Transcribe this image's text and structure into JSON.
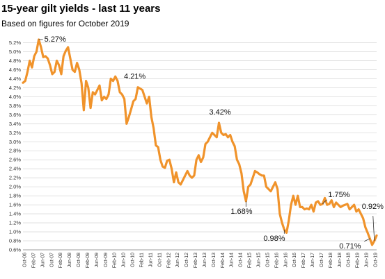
{
  "chart_data": {
    "type": "line",
    "title": "15-year gilt yields - last 11 years",
    "subtitle": "Based on figures for October 2019",
    "xlabel": "",
    "ylabel": "",
    "ylim": [
      0.6,
      5.3
    ],
    "yticks": [
      0.6,
      0.8,
      1.0,
      1.2,
      1.4,
      1.6,
      1.8,
      2.0,
      2.2,
      2.4,
      2.6,
      2.8,
      3.0,
      3.2,
      3.4,
      3.6,
      3.8,
      4.0,
      4.2,
      4.4,
      4.6,
      4.8,
      5.0,
      5.2
    ],
    "ytick_labels": [
      "0.6%",
      "0.8%",
      "1.0%",
      "1.2%",
      "1.4%",
      "1.6%",
      "1.8%",
      "2.0%",
      "2.2%",
      "2.4%",
      "2.6%",
      "2.8%",
      "3.0%",
      "3.2%",
      "3.4%",
      "3.6%",
      "3.8%",
      "4.0%",
      "4.2%",
      "4.4%",
      "4.6%",
      "4.8%",
      "5.0%",
      "5.2%"
    ],
    "xtick_labels": [
      "Oct-06",
      "Feb-07",
      "Jun-07",
      "Oct-07",
      "Feb-08",
      "Jun-08",
      "Oct-08",
      "Feb-09",
      "Jun-09",
      "Oct-09",
      "Feb-10",
      "Jun-10",
      "Oct-10",
      "Feb-11",
      "Jun-11",
      "Oct-11",
      "Feb-12",
      "Jun-12",
      "Oct-12",
      "Feb-13",
      "Jun-13",
      "Oct-13",
      "Feb-14",
      "Jun-14",
      "Oct-14",
      "Feb-15",
      "Jun-15",
      "Oct-15",
      "Feb-16",
      "Jun-16",
      "Oct-16",
      "Feb-17",
      "Jun-17",
      "Oct-17",
      "Feb-18",
      "Jun-18",
      "Oct-18",
      "Feb-19",
      "Jun-19",
      "Oct-19"
    ],
    "grid": true,
    "line_color": "#f0932b",
    "series": [
      {
        "values": [
          4.31,
          4.35,
          4.55,
          4.8,
          4.65,
          4.9,
          5.0,
          5.27,
          5.1,
          4.88,
          4.9,
          4.85,
          4.7,
          4.5,
          4.55,
          4.8,
          4.7,
          4.5,
          4.9,
          5.02,
          5.1,
          4.85,
          4.6,
          4.55,
          4.75,
          4.6,
          4.3,
          3.7,
          4.35,
          4.2,
          3.75,
          4.1,
          4.05,
          4.15,
          4.25,
          3.92,
          4.0,
          3.95,
          4.05,
          4.4,
          4.35,
          4.45,
          4.35,
          4.1,
          4.05,
          3.95,
          3.4,
          3.55,
          3.72,
          3.9,
          3.95,
          4.21,
          4.18,
          4.15,
          4.0,
          3.85,
          4.0,
          3.55,
          3.3,
          2.92,
          2.88,
          2.6,
          2.45,
          2.42,
          2.58,
          2.6,
          2.4,
          2.1,
          2.32,
          2.1,
          2.05,
          2.15,
          2.25,
          2.35,
          2.25,
          2.2,
          2.25,
          2.6,
          2.7,
          2.55,
          2.65,
          2.95,
          3.0,
          3.1,
          3.2,
          3.15,
          3.1,
          3.42,
          3.2,
          3.15,
          3.17,
          3.1,
          3.15,
          3.0,
          2.9,
          2.6,
          2.5,
          2.3,
          1.9,
          1.68,
          2.0,
          2.05,
          2.2,
          2.35,
          2.32,
          2.28,
          2.25,
          2.25,
          2.0,
          1.95,
          1.9,
          2.0,
          2.1,
          1.95,
          1.4,
          1.2,
          1.05,
          0.98,
          1.25,
          1.6,
          1.8,
          1.6,
          1.8,
          1.55,
          1.55,
          1.5,
          1.52,
          1.5,
          1.6,
          1.45,
          1.65,
          1.68,
          1.6,
          1.62,
          1.75,
          1.6,
          1.62,
          1.7,
          1.55,
          1.65,
          1.6,
          1.55,
          1.58,
          1.6,
          1.62,
          1.5,
          1.55,
          1.6,
          1.45,
          1.5,
          1.4,
          1.3,
          1.1,
          0.98,
          0.85,
          0.71,
          0.8,
          0.92
        ]
      }
    ],
    "annotations": [
      {
        "text": "5.27%",
        "index": 7
      },
      {
        "text": "4.21%",
        "index": 51
      },
      {
        "text": "3.42%",
        "index": 87
      },
      {
        "text": "1.68%",
        "index": 99
      },
      {
        "text": "0.98%",
        "index": 116
      },
      {
        "text": "1.75%",
        "index": 133
      },
      {
        "text": "0.71%",
        "index": 154
      },
      {
        "text": "0.92%",
        "index": 156
      }
    ]
  }
}
